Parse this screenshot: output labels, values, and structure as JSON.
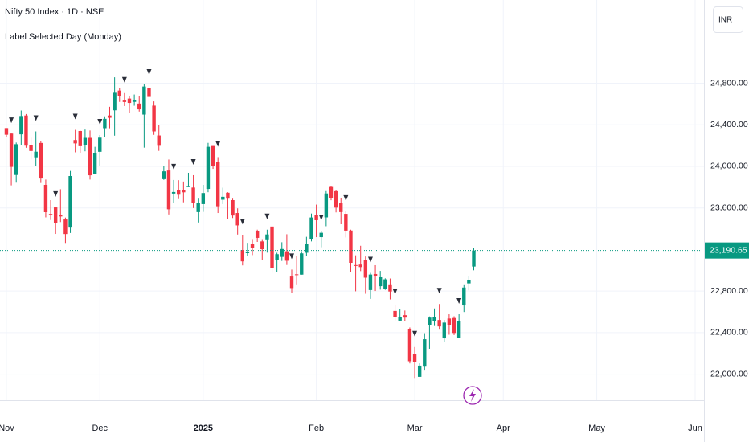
{
  "chart_data": {
    "type": "candlestick",
    "title": "Nifty 50 Index · 1D · NSE",
    "subtitle": "Label Selected Day (Monday)",
    "currency": "INR",
    "up_color": "#089981",
    "down_color": "#f23645",
    "marker_color": "#2a2e39",
    "grid": true,
    "open": [
      24368,
      24315,
      23917,
      24308,
      24489,
      24207,
      24087,
      24225,
      23822,
      23542,
      23605,
      23529,
      23489,
      23411,
      24253,
      24340,
      24204,
      24274,
      23927,
      24140,
      24367,
      24489,
      24539,
      24729,
      24633,
      24652,
      24620,
      24604,
      24498,
      24753,
      24584,
      24297,
      23877,
      23960,
      23738,
      23769,
      23775,
      23801,
      23796,
      23560,
      23637,
      23783,
      24196,
      24045,
      23679,
      23746,
      23675,
      23551,
      23195,
      23165,
      23250,
      23377,
      23278,
      23290,
      23421,
      23099,
      23129,
      23183,
      22940,
      22961,
      22958,
      23169,
      23296,
      23528,
      23319,
      23509,
      23802,
      23761,
      23649,
      23543,
      23383,
      23050,
      23055,
      23097,
      22810,
      22964,
      22847,
      22821,
      22857,
      22609,
      22516,
      22568,
      22433,
      22195,
      21975,
      22073,
      22476,
      22509,
      22522,
      22345,
      22536,
      22541,
      22353,
      22662,
      22874,
      23036
    ],
    "high": [
      24368,
      24316,
      24229,
      24537,
      24503,
      24276,
      24336,
      24242,
      23873,
      23675,
      23606,
      23780,
      23507,
      23956,
      24351,
      24343,
      24354,
      24345,
      24188,
      24301,
      24481,
      24573,
      24857,
      24751,
      24705,
      24677,
      24691,
      24675,
      24792,
      24781,
      24625,
      24394,
      24004,
      24066,
      23869,
      23867,
      23854,
      23938,
      23915,
      23689,
      23822,
      24226,
      24196,
      24089,
      23795,
      23751,
      23689,
      23596,
      23341,
      23264,
      23293,
      23391,
      23292,
      23391,
      23426,
      23169,
      23270,
      23347,
      23007,
      23137,
      23183,
      23322,
      23546,
      23632,
      23381,
      23762,
      23807,
      23773,
      23695,
      23568,
      23391,
      23144,
      23236,
      23133,
      22975,
      23049,
      22994,
      22923,
      22921,
      22668,
      22625,
      22613,
      22450,
      22262,
      22105,
      22395,
      22556,
      22633,
      22676,
      22522,
      22577,
      22558,
      22577,
      22857,
      22940,
      23216
    ],
    "low": [
      24280,
      23817,
      23843,
      24204,
      24179,
      24066,
      24004,
      23840,
      23509,
      23484,
      23350,
      23464,
      23263,
      23359,
      24135,
      24125,
      24145,
      23873,
      23927,
      24008,
      24280,
      24366,
      24295,
      24620,
      24580,
      24511,
      24583,
      24527,
      24180,
      24601,
      24303,
      24149,
      23870,
      23537,
      23647,
      23685,
      23654,
      23800,
      23599,
      23460,
      23562,
      23751,
      23976,
      23551,
      23637,
      23497,
      23503,
      23344,
      23047,
      23134,
      23146,
      23273,
      23100,
      23170,
      22976,
      22981,
      23090,
      23051,
      22786,
      22857,
      22958,
      23139,
      23278,
      23319,
      23222,
      23424,
      23674,
      23557,
      23443,
      23316,
      22987,
      22798,
      22992,
      22774,
      22725,
      22801,
      22814,
      22812,
      22720,
      22518,
      22513,
      22508,
      22104,
      21964,
      21974,
      22035,
      22245,
      22464,
      22429,
      22314,
      22380,
      22377,
      22353,
      22599,
      22807,
      23000
    ],
    "close": [
      24304,
      23995,
      24213,
      24484,
      24199,
      24148,
      24141,
      23883,
      23559,
      23532,
      23453,
      23518,
      23349,
      23907,
      24221,
      24194,
      24274,
      23914,
      24131,
      24276,
      24457,
      24467,
      24708,
      24677,
      24619,
      24610,
      24641,
      24548,
      24768,
      24668,
      24336,
      24198,
      23952,
      23587,
      23753,
      23727,
      23750,
      23813,
      23645,
      23645,
      23743,
      24188,
      24005,
      23616,
      23707,
      23689,
      23527,
      23432,
      23086,
      23176,
      23213,
      23312,
      23203,
      23345,
      23024,
      23155,
      23205,
      23092,
      22829,
      22957,
      23163,
      23250,
      23508,
      23482,
      23361,
      23739,
      23696,
      23603,
      23560,
      23382,
      23072,
      23045,
      23031,
      22929,
      22959,
      22945,
      22933,
      22913,
      22796,
      22553,
      22547,
      22545,
      22125,
      22119,
      22083,
      22337,
      22545,
      22553,
      22460,
      22497,
      22470,
      22397,
      22509,
      22834,
      22907,
      23190.65
    ],
    "monday_candles": [
      1,
      6,
      10,
      14,
      19,
      24,
      29,
      34,
      38,
      43,
      48,
      53,
      58,
      64,
      69,
      74,
      79,
      83,
      88,
      92
    ],
    "last_price_label": "23,190.65",
    "xlim": [
      -1.3,
      141.8
    ],
    "xticks": [
      {
        "value": 0,
        "label": "Nov"
      },
      {
        "value": 19,
        "label": "Dec"
      },
      {
        "value": 40,
        "label": "2025"
      },
      {
        "value": 63,
        "label": "Feb"
      },
      {
        "value": 83,
        "label": "Mar"
      },
      {
        "value": 101,
        "label": "Apr"
      },
      {
        "value": 120,
        "label": "May"
      },
      {
        "value": 140,
        "label": "Jun"
      }
    ],
    "ylim": [
      21750,
      25600
    ],
    "yticks": [
      {
        "value": 22000,
        "label": "22,000.00"
      },
      {
        "value": 22400,
        "label": "22,400.00"
      },
      {
        "value": 22800,
        "label": "22,800.00"
      },
      {
        "value": 23600,
        "label": "23,600.00"
      },
      {
        "value": 24000,
        "label": "24,000.00"
      },
      {
        "value": 24400,
        "label": "24,400.00"
      },
      {
        "value": 24800,
        "label": "24,800.00"
      }
    ]
  }
}
